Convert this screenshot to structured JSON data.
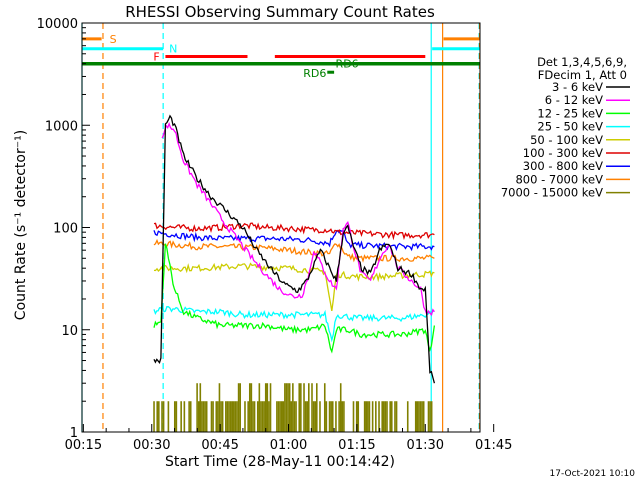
{
  "chart_data": {
    "type": "line",
    "title": "RHESSI Observing Summary Count Rates",
    "xlabel": "Start Time (28-May-11 00:14:42)",
    "ylabel": "Count Rate (s⁻¹ detector⁻¹)",
    "y_scale": "log",
    "ylim": [
      1,
      10000
    ],
    "xlim_minutes": [
      14.7,
      102
    ],
    "x_ticks": [
      "00:15",
      "00:30",
      "00:45",
      "01:00",
      "01:15",
      "01:30",
      "01:45"
    ],
    "y_ticks": [
      "1",
      "10",
      "100",
      "1000",
      "10000"
    ],
    "legend_header": [
      "Det 1,3,4,5,6,9,",
      "FDecim 1, Att 0"
    ],
    "timestamp": "17-Oct-2021 10:10",
    "series": [
      {
        "name": "3 - 6 keV",
        "color": "#000000"
      },
      {
        "name": "6 - 12 keV",
        "color": "#ff00ff"
      },
      {
        "name": "12 - 25 keV",
        "color": "#00ff00"
      },
      {
        "name": "25 - 50 keV",
        "color": "#00ffff"
      },
      {
        "name": "50 - 100 keV",
        "color": "#cccc00"
      },
      {
        "name": "100 - 300 keV",
        "color": "#dd0000"
      },
      {
        "name": "300 - 800 keV",
        "color": "#0000ff"
      },
      {
        "name": "800 - 7000 keV",
        "color": "#ff8000"
      },
      {
        "name": "7000 - 15000 keV",
        "color": "#808000"
      }
    ],
    "series_values": {
      "3 - 6 keV": [
        [
          30.5,
          5
        ],
        [
          32,
          5
        ],
        [
          33,
          1000
        ],
        [
          34,
          1200
        ],
        [
          35,
          1000
        ],
        [
          37,
          500
        ],
        [
          40,
          300
        ],
        [
          43,
          200
        ],
        [
          46,
          150
        ],
        [
          50,
          100
        ],
        [
          53,
          60
        ],
        [
          56,
          40
        ],
        [
          59,
          28
        ],
        [
          62,
          24
        ],
        [
          64,
          30
        ],
        [
          67,
          60
        ],
        [
          69,
          40
        ],
        [
          70.5,
          30
        ],
        [
          72,
          90
        ],
        [
          73,
          100
        ],
        [
          74.5,
          60
        ],
        [
          76,
          40
        ],
        [
          78,
          35
        ],
        [
          80,
          60
        ],
        [
          82,
          70
        ],
        [
          84,
          40
        ],
        [
          87,
          35
        ],
        [
          89,
          25
        ],
        [
          90,
          25
        ],
        [
          91,
          4
        ],
        [
          92,
          3
        ]
      ],
      "6 - 12 keV": [
        [
          32.3,
          800
        ],
        [
          33.5,
          1000
        ],
        [
          35,
          900
        ],
        [
          37,
          450
        ],
        [
          40,
          260
        ],
        [
          43,
          170
        ],
        [
          46,
          110
        ],
        [
          49,
          75
        ],
        [
          52,
          50
        ],
        [
          55,
          35
        ],
        [
          58,
          25
        ],
        [
          61,
          21
        ],
        [
          63,
          22
        ],
        [
          64.5,
          35
        ],
        [
          65.5,
          60
        ],
        [
          67,
          45
        ],
        [
          69,
          30
        ],
        [
          70.5,
          25
        ],
        [
          72,
          100
        ],
        [
          73,
          110
        ],
        [
          74.5,
          60
        ],
        [
          76,
          35
        ],
        [
          78,
          30
        ],
        [
          80,
          50
        ],
        [
          82,
          70
        ],
        [
          84,
          40
        ],
        [
          87,
          30
        ],
        [
          89,
          25
        ],
        [
          90,
          15
        ],
        [
          91,
          15
        ],
        [
          92,
          15
        ]
      ],
      "12 - 25 keV": [
        [
          30.5,
          11
        ],
        [
          32,
          12
        ],
        [
          33,
          70
        ],
        [
          35,
          25
        ],
        [
          37,
          15
        ],
        [
          40,
          13
        ],
        [
          45,
          11
        ],
        [
          50,
          11
        ],
        [
          55,
          11
        ],
        [
          60,
          10
        ],
        [
          65,
          10
        ],
        [
          68,
          11
        ],
        [
          69.5,
          6
        ],
        [
          70.5,
          10
        ],
        [
          73,
          10
        ],
        [
          76,
          9
        ],
        [
          80,
          9
        ],
        [
          85,
          9
        ],
        [
          90,
          10
        ],
        [
          91,
          6
        ],
        [
          92,
          11
        ]
      ],
      "25 - 50 keV": [
        [
          30.5,
          15
        ],
        [
          32,
          16
        ],
        [
          35,
          16
        ],
        [
          40,
          15
        ],
        [
          45,
          15
        ],
        [
          50,
          14
        ],
        [
          55,
          14
        ],
        [
          60,
          14
        ],
        [
          65,
          14
        ],
        [
          68,
          14
        ],
        [
          69.5,
          8
        ],
        [
          70.5,
          14
        ],
        [
          75,
          13
        ],
        [
          80,
          13
        ],
        [
          85,
          13
        ],
        [
          90,
          14
        ],
        [
          92,
          15
        ]
      ],
      "50 - 100 keV": [
        [
          30.5,
          40
        ],
        [
          35,
          40
        ],
        [
          40,
          40
        ],
        [
          45,
          41
        ],
        [
          50,
          42
        ],
        [
          55,
          41
        ],
        [
          60,
          40
        ],
        [
          65,
          38
        ],
        [
          68,
          37
        ],
        [
          69.5,
          15
        ],
        [
          70.5,
          35
        ],
        [
          75,
          33
        ],
        [
          80,
          33
        ],
        [
          85,
          34
        ],
        [
          90,
          35
        ],
        [
          92,
          36
        ]
      ],
      "100 - 300 keV": [
        [
          30.5,
          105
        ],
        [
          35,
          100
        ],
        [
          40,
          98
        ],
        [
          45,
          100
        ],
        [
          50,
          105
        ],
        [
          55,
          100
        ],
        [
          60,
          98
        ],
        [
          65,
          95
        ],
        [
          69,
          95
        ],
        [
          70.5,
          90
        ],
        [
          75,
          88
        ],
        [
          80,
          86
        ],
        [
          85,
          84
        ],
        [
          90,
          85
        ],
        [
          92,
          85
        ]
      ],
      "300 - 800 keV": [
        [
          30.5,
          90
        ],
        [
          35,
          85
        ],
        [
          40,
          80
        ],
        [
          45,
          78
        ],
        [
          50,
          78
        ],
        [
          55,
          78
        ],
        [
          60,
          77
        ],
        [
          65,
          75
        ],
        [
          69,
          70
        ],
        [
          70.5,
          95
        ],
        [
          72,
          90
        ],
        [
          73,
          68
        ],
        [
          75,
          67
        ],
        [
          80,
          66
        ],
        [
          85,
          65
        ],
        [
          90,
          65
        ],
        [
          92,
          65
        ]
      ],
      "800 - 7000 keV": [
        [
          30.5,
          70
        ],
        [
          35,
          68
        ],
        [
          40,
          65
        ],
        [
          45,
          65
        ],
        [
          50,
          64
        ],
        [
          55,
          63
        ],
        [
          60,
          60
        ],
        [
          65,
          57
        ],
        [
          69,
          55
        ],
        [
          70.5,
          72
        ],
        [
          72,
          60
        ],
        [
          73,
          52
        ],
        [
          75,
          50
        ],
        [
          80,
          50
        ],
        [
          85,
          50
        ],
        [
          90,
          50
        ],
        [
          92,
          50
        ]
      ],
      "7000 - 15000 keV": [
        [
          30.5,
          1
        ],
        [
          92,
          1
        ]
      ]
    },
    "flag_bars": [
      {
        "label": "S",
        "color": "#ff8000",
        "y": 7000,
        "segments": [
          [
            14.7,
            19
          ],
          [
            94,
            102
          ]
        ]
      },
      {
        "label": "N",
        "color": "#00ffff",
        "y": 5600,
        "segments": [
          [
            14.7,
            32.5
          ],
          [
            91.5,
            102
          ]
        ]
      },
      {
        "label": "F",
        "color": "#ff0000",
        "y": 4700,
        "segments": [
          [
            33,
            51
          ],
          [
            57,
            90
          ]
        ]
      },
      {
        "label": "",
        "color": "#008000",
        "y": 4000,
        "segments": [
          [
            14.7,
            102
          ]
        ]
      },
      {
        "label": "RD6",
        "color": "#008000",
        "y": 3300,
        "segments": [
          [
            68.5,
            70
          ]
        ]
      },
      {
        "label": "RD6",
        "color": "#008000",
        "y": 4000,
        "segments": [
          [
            68,
            69
          ]
        ]
      }
    ],
    "vertical_lines": [
      {
        "minute": 14.7,
        "color": "#00ffff",
        "style": "solid"
      },
      {
        "minute": 19.3,
        "color": "#ff8000",
        "style": "dashed"
      },
      {
        "minute": 32.5,
        "color": "#00ffff",
        "style": "dashed"
      },
      {
        "minute": 91.3,
        "color": "#00ffff",
        "style": "solid"
      },
      {
        "minute": 93.8,
        "color": "#ff8000",
        "style": "solid"
      },
      {
        "minute": 101.8,
        "color": "#00ffff",
        "style": "dashed"
      },
      {
        "minute": 101.9,
        "color": "#ff8000",
        "style": "dashed"
      }
    ]
  }
}
